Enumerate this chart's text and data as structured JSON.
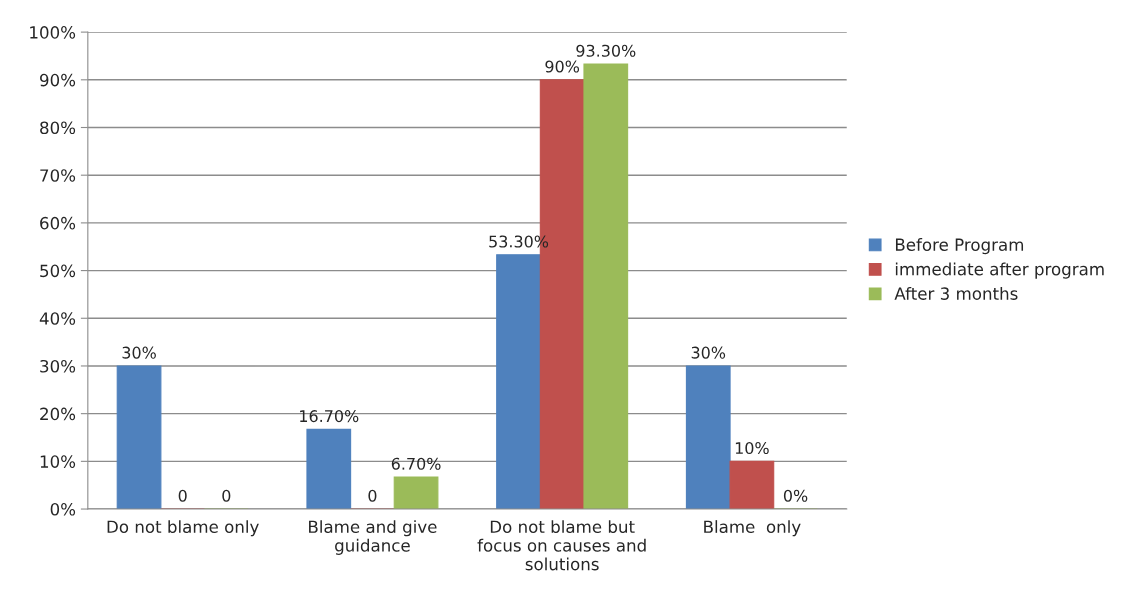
{
  "chart_data": {
    "type": "bar",
    "categories": [
      "Do not blame only",
      "Blame and give guidance",
      "Do not blame but focus on causes and solutions",
      "Blame  only"
    ],
    "series": [
      {
        "name": "Before Program",
        "color": "#4f81bd",
        "values": [
          30,
          16.7,
          53.3,
          30
        ],
        "value_labels": [
          "30%",
          "16.70%",
          "53.30%",
          "30%"
        ]
      },
      {
        "name": "immediate after program",
        "color": "#c0504d",
        "values": [
          0,
          0,
          90,
          10
        ],
        "value_labels": [
          "0",
          "0",
          "90%",
          "10%"
        ]
      },
      {
        "name": "After 3 months",
        "color": "#9bbb59",
        "values": [
          0,
          6.7,
          93.3,
          0
        ],
        "value_labels": [
          "0",
          "6.70%",
          "93.30%",
          "0%"
        ]
      }
    ],
    "ylim": [
      0,
      100
    ],
    "yticks": [
      {
        "value": 0,
        "label": "0%"
      },
      {
        "value": 10,
        "label": "10%"
      },
      {
        "value": 20,
        "label": "20%"
      },
      {
        "value": 30,
        "label": "30%"
      },
      {
        "value": 40,
        "label": "40%"
      },
      {
        "value": 50,
        "label": "50%"
      },
      {
        "value": 60,
        "label": "60%"
      },
      {
        "value": 70,
        "label": "70%"
      },
      {
        "value": 80,
        "label": "80%"
      },
      {
        "value": 90,
        "label": "90%"
      },
      {
        "value": 100,
        "label": "100%"
      }
    ],
    "grid": "y",
    "legend": "right"
  }
}
